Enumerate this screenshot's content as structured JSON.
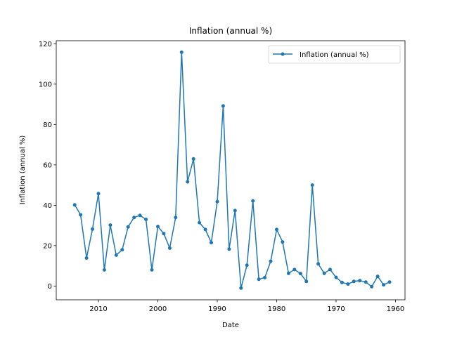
{
  "chart_data": {
    "type": "line",
    "title": "Inflation (annual %)",
    "xlabel": "Date",
    "ylabel": "Inflation (annual %)",
    "x_reversed": true,
    "xlim": [
      2017.1,
      1958.4
    ],
    "ylim": [
      -6.8,
      121.5
    ],
    "x_ticks": [
      2010,
      2000,
      1990,
      1980,
      1970,
      1960
    ],
    "y_ticks": [
      0,
      20,
      40,
      60,
      80,
      100,
      120
    ],
    "grid": false,
    "legend": "top-right",
    "color": "#1f77b4",
    "series": [
      {
        "name": "Inflation (annual %)",
        "x": [
          2014,
          2013,
          2012,
          2011,
          2010,
          2009,
          2008,
          2007,
          2006,
          2005,
          2004,
          2003,
          2002,
          2001,
          2000,
          1999,
          1998,
          1997,
          1996,
          1995,
          1994,
          1993,
          1992,
          1991,
          1990,
          1989,
          1988,
          1987,
          1986,
          1985,
          1984,
          1983,
          1982,
          1981,
          1980,
          1979,
          1978,
          1977,
          1976,
          1975,
          1974,
          1973,
          1972,
          1971,
          1970,
          1969,
          1968,
          1967,
          1966,
          1965,
          1964,
          1963,
          1962,
          1961
        ],
        "values": [
          40.2,
          35.3,
          13.9,
          28.2,
          45.8,
          8.0,
          30.2,
          15.3,
          18.0,
          29.3,
          34.0,
          35.0,
          33.0,
          8.0,
          29.5,
          26.0,
          18.8,
          34.0,
          115.8,
          51.6,
          63.0,
          31.4,
          28.0,
          21.5,
          41.8,
          89.2,
          18.3,
          37.4,
          -1.0,
          10.3,
          42.2,
          3.4,
          4.2,
          12.3,
          28.0,
          21.8,
          6.3,
          8.2,
          6.2,
          2.3,
          50.0,
          11.0,
          6.3,
          8.2,
          4.3,
          1.8,
          1.0,
          2.3,
          2.7,
          2.0,
          -0.3,
          4.8,
          0.6,
          2.0
        ]
      }
    ]
  }
}
